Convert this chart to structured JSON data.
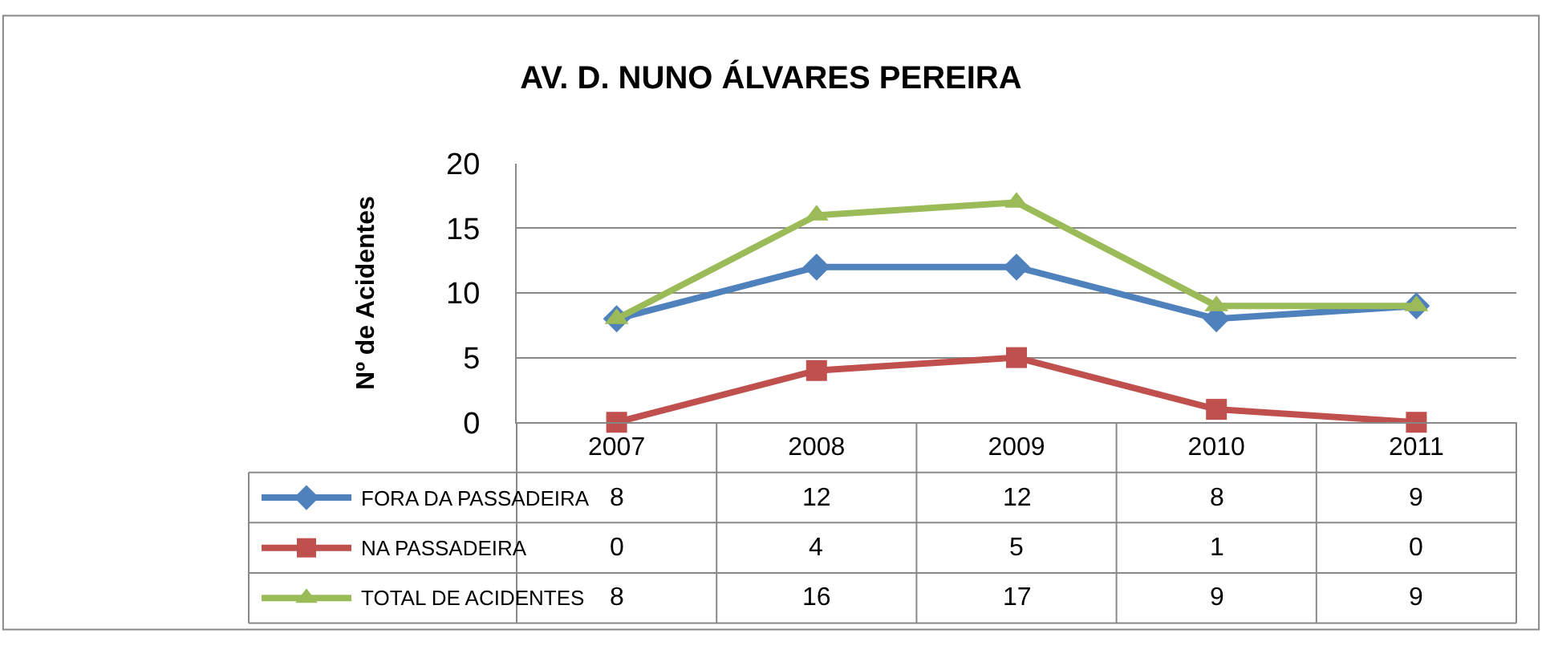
{
  "chart_data": {
    "type": "line",
    "title": "AV. D. NUNO ÁLVARES PEREIRA",
    "ylabel": "Nº de Acidentes",
    "categories": [
      "2007",
      "2008",
      "2009",
      "2010",
      "2011"
    ],
    "series": [
      {
        "name": "FORA DA PASSADEIRA",
        "color": "#4f81bd",
        "marker": "diamond",
        "values": [
          8,
          12,
          12,
          8,
          9
        ]
      },
      {
        "name": "NA PASSADEIRA",
        "color": "#c0504d",
        "marker": "square",
        "values": [
          0,
          4,
          5,
          1,
          0
        ]
      },
      {
        "name": "TOTAL DE ACIDENTES",
        "color": "#9bbb59",
        "marker": "triangle",
        "values": [
          8,
          16,
          17,
          9,
          9
        ]
      }
    ],
    "ylim": [
      0,
      20
    ],
    "yticks": [
      0,
      5,
      10,
      15,
      20
    ],
    "grid": "y",
    "legend": "bottom left",
    "data_labels": true,
    "line_style": "solid"
  }
}
